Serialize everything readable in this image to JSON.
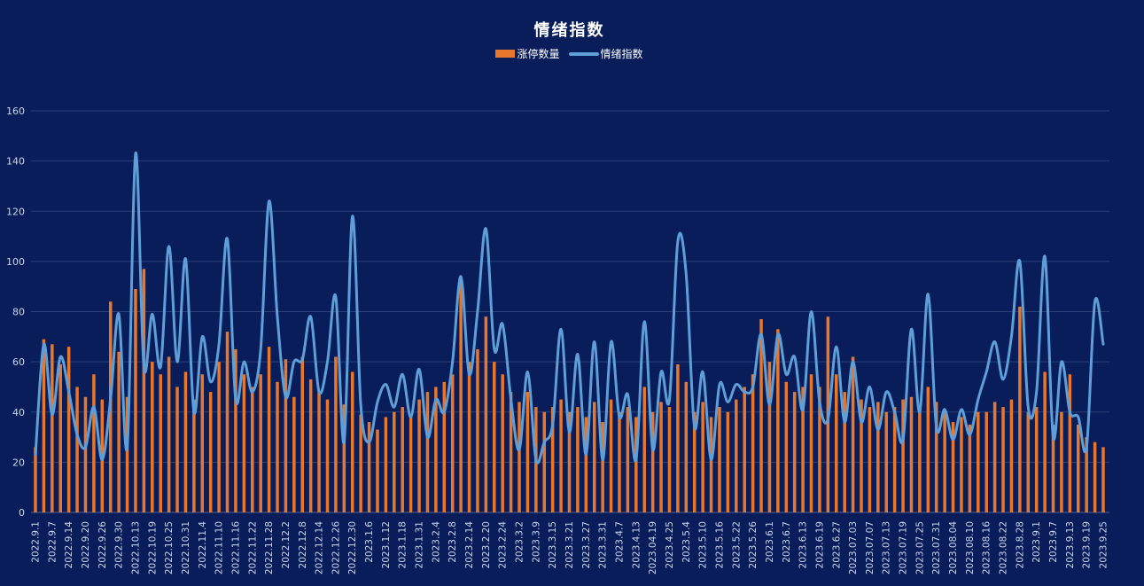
{
  "title": "情绪指数",
  "legend": [
    {
      "label": "涨停数量",
      "type": "bar",
      "color": "#e8772b"
    },
    {
      "label": "情绪指数",
      "type": "line",
      "color": "#5f9fd8"
    }
  ],
  "colors": {
    "background": "#081d59",
    "bar": "#e8772b",
    "line": "#5f9fd8",
    "gridline": "rgba(170,190,225,0.22)",
    "axis_line": "rgba(200,215,240,0.35)",
    "tick_text": "#c9d6ee",
    "title_text": "#ffffff"
  },
  "chart_data": {
    "type": "bar",
    "subtype": "combo-bar-line",
    "title": "情绪指数",
    "xlabel": "",
    "ylabel": "",
    "ylim": [
      0,
      160
    ],
    "yticks": [
      0,
      20,
      40,
      60,
      80,
      100,
      120,
      140,
      160
    ],
    "grid": true,
    "legend_position": "top",
    "x_sampling_note": "values sampled at each category and at each midpoint between categories (2 points per category interval, estimated from pixels)",
    "categories": [
      "2022.9.1",
      "2022.9.7",
      "2022.9.14",
      "2022.9.20",
      "2022.9.26",
      "2022.9.30",
      "2022.10.13",
      "2022.10.19",
      "2022.10.25",
      "2022.10.31",
      "2022.11.4",
      "2022.11.10",
      "2022.11.16",
      "2022.11.22",
      "2022.11.28",
      "2022.12.2",
      "2022.12.8",
      "2022.12.14",
      "2022.12.26",
      "2022.12.30",
      "2023.1.6",
      "2023.1.12",
      "2023.1.18",
      "2023.1.31",
      "2023.2.4",
      "2023.2.8",
      "2023.2.14",
      "2023.2.20",
      "2023.2.24",
      "2023.3.2",
      "2023.3.9",
      "2023.3.15",
      "2023.3.21",
      "2023.3.27",
      "2023.3.31",
      "2023.4.7",
      "2023.4.13",
      "2023.04.19",
      "2023.4.25",
      "2023.5.4",
      "2023.5.10",
      "2023.5.16",
      "2023.5.22",
      "2023.5.26",
      "2023.6.1",
      "2023.6.7",
      "2023.6.13",
      "2023.6.19",
      "2023.6.27",
      "2023.07.03",
      "2023.07.07",
      "2023.07.13",
      "2023.07.19",
      "2023.07.25",
      "2023.07.31",
      "2023.08.04",
      "2023.08.10",
      "2023.08.16",
      "2023.08.22",
      "2023.8.28",
      "2023.9.1",
      "2023.9.7",
      "2023.9.13",
      "2023.9.19",
      "2023.9.25"
    ],
    "series": [
      {
        "name": "涨停数量",
        "type": "bar",
        "color": "#e8772b",
        "values": [
          26,
          69,
          67,
          59,
          66,
          50,
          46,
          55,
          45,
          84,
          64,
          46,
          89,
          97,
          60,
          55,
          62,
          50,
          56,
          45,
          55,
          48,
          60,
          72,
          65,
          55,
          50,
          55,
          66,
          52,
          61,
          46,
          62,
          53,
          48,
          45,
          62,
          43,
          56,
          39,
          36,
          33,
          38,
          40,
          42,
          38,
          45,
          48,
          50,
          52,
          55,
          93,
          60,
          65,
          78,
          60,
          55,
          48,
          44,
          48,
          42,
          40,
          42,
          45,
          40,
          42,
          38,
          44,
          36,
          45,
          40,
          42,
          38,
          50,
          40,
          44,
          42,
          59,
          52,
          40,
          44,
          38,
          42,
          40,
          45,
          50,
          55,
          77,
          60,
          73,
          52,
          48,
          50,
          55,
          50,
          78,
          55,
          48,
          62,
          45,
          42,
          44,
          40,
          42,
          45,
          46,
          42,
          50,
          44,
          40,
          36,
          38,
          35,
          40,
          40,
          44,
          42,
          45,
          82,
          40,
          42,
          56,
          35,
          40,
          55,
          35,
          30,
          28,
          26
        ]
      },
      {
        "name": "情绪指数",
        "type": "line",
        "color": "#5f9fd8",
        "values": [
          23,
          67,
          39,
          62,
          48,
          31,
          26,
          42,
          21,
          45,
          79,
          26,
          143,
          58,
          79,
          58,
          106,
          60,
          101,
          40,
          70,
          52,
          67,
          109,
          45,
          60,
          48,
          65,
          124,
          78,
          46,
          60,
          61,
          78,
          48,
          60,
          86,
          28,
          118,
          43,
          28,
          44,
          51,
          42,
          55,
          38,
          57,
          30,
          45,
          40,
          60,
          94,
          55,
          80,
          113,
          65,
          75,
          45,
          25,
          56,
          21,
          28,
          35,
          73,
          32,
          63,
          23,
          68,
          21,
          68,
          38,
          47,
          21,
          76,
          25,
          56,
          45,
          108,
          95,
          34,
          56,
          21,
          51,
          44,
          51,
          48,
          50,
          71,
          43,
          71,
          55,
          62,
          41,
          80,
          44,
          37,
          66,
          36,
          60,
          36,
          50,
          33,
          48,
          40,
          29,
          73,
          40,
          87,
          34,
          41,
          29,
          41,
          31,
          45,
          56,
          68,
          53,
          70,
          100,
          42,
          48,
          102,
          30,
          60,
          40,
          38,
          26,
          84,
          67
        ]
      }
    ]
  }
}
